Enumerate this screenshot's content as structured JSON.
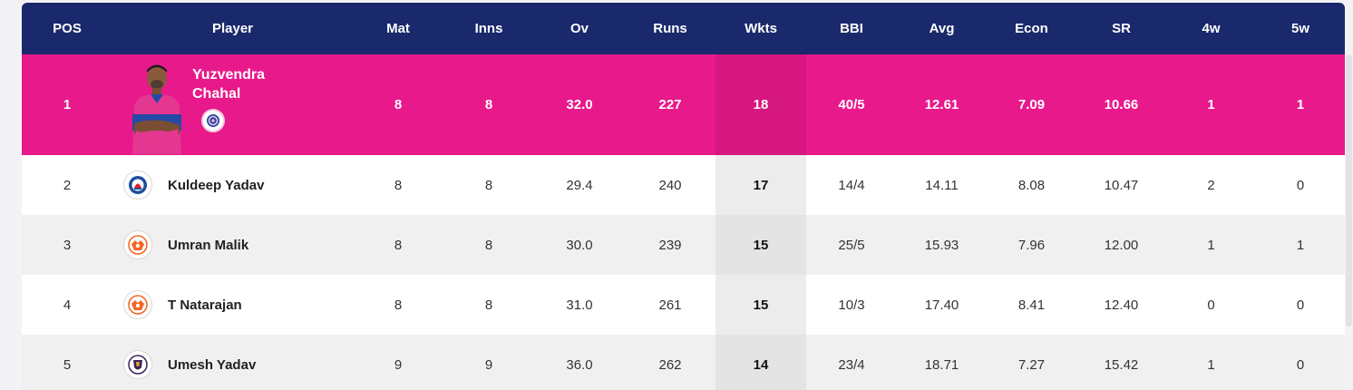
{
  "headers": [
    "POS",
    "Player",
    "Mat",
    "Inns",
    "Ov",
    "Runs",
    "Wkts",
    "BBI",
    "Avg",
    "Econ",
    "SR",
    "4w",
    "5w"
  ],
  "top": {
    "pos": "1",
    "name_line1": "Yuzvendra",
    "name_line2": "Chahal",
    "team_icon": "rajasthan-royals-logo",
    "mat": "8",
    "inns": "8",
    "ov": "32.0",
    "runs": "227",
    "wkts": "18",
    "bbi": "40/5",
    "avg": "12.61",
    "econ": "7.09",
    "sr": "10.66",
    "w4": "1",
    "w5": "1"
  },
  "rows": [
    {
      "pos": "2",
      "name": "Kuldeep Yadav",
      "team_icon": "delhi-capitals-logo",
      "mat": "8",
      "inns": "8",
      "ov": "29.4",
      "runs": "240",
      "wkts": "17",
      "bbi": "14/4",
      "avg": "14.11",
      "econ": "8.08",
      "sr": "10.47",
      "w4": "2",
      "w5": "0"
    },
    {
      "pos": "3",
      "name": "Umran Malik",
      "team_icon": "sunrisers-hyderabad-logo",
      "mat": "8",
      "inns": "8",
      "ov": "30.0",
      "runs": "239",
      "wkts": "15",
      "bbi": "25/5",
      "avg": "15.93",
      "econ": "7.96",
      "sr": "12.00",
      "w4": "1",
      "w5": "1"
    },
    {
      "pos": "4",
      "name": "T Natarajan",
      "team_icon": "sunrisers-hyderabad-logo",
      "mat": "8",
      "inns": "8",
      "ov": "31.0",
      "runs": "261",
      "wkts": "15",
      "bbi": "10/3",
      "avg": "17.40",
      "econ": "8.41",
      "sr": "12.40",
      "w4": "0",
      "w5": "0"
    },
    {
      "pos": "5",
      "name": "Umesh Yadav",
      "team_icon": "kolkata-knight-riders-logo",
      "mat": "9",
      "inns": "9",
      "ov": "36.0",
      "runs": "262",
      "wkts": "14",
      "bbi": "23/4",
      "avg": "18.71",
      "econ": "7.27",
      "sr": "15.42",
      "w4": "1",
      "w5": "0"
    }
  ],
  "colors": {
    "header": "#19296b",
    "highlight": "#e8198b",
    "dc": "#1d4f9c",
    "srh": "#f26522",
    "kkr": "#3a225d",
    "rr": "#254aa5"
  }
}
